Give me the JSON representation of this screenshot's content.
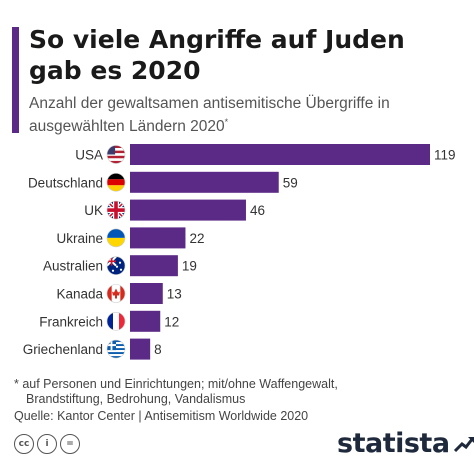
{
  "title": "So viele Angriffe auf Juden gab es 2020",
  "subtitle": "Anzahl der gewaltsamen antisemitische Übergriffe in ausgewählten Ländern 2020",
  "subtitle_marker": "*",
  "footnote_line1": "* auf Personen und Einrichtungen; mit/ohne Waffengewalt,",
  "footnote_line2": "Brandstiftung, Bedrohung, Vandalismus",
  "source": "Quelle: Kantor Center | Antisemitism Worldwide 2020",
  "license_icons": [
    "cc",
    "i",
    "="
  ],
  "brand": "statista",
  "colors": {
    "bar": "#5b2a86",
    "accent": "#5b2a86"
  },
  "chart_data": {
    "type": "bar",
    "orientation": "horizontal",
    "categories": [
      "USA",
      "Deutschland",
      "UK",
      "Ukraine",
      "Australien",
      "Kanada",
      "Frankreich",
      "Griechenland"
    ],
    "flags": [
      "us-flag-icon",
      "germany-flag-icon",
      "uk-flag-icon",
      "ukraine-flag-icon",
      "australia-flag-icon",
      "canada-flag-icon",
      "france-flag-icon",
      "greece-flag-icon"
    ],
    "values": [
      119,
      59,
      46,
      22,
      19,
      13,
      12,
      8
    ],
    "data_labels": true,
    "grid": false,
    "legend": false
  }
}
